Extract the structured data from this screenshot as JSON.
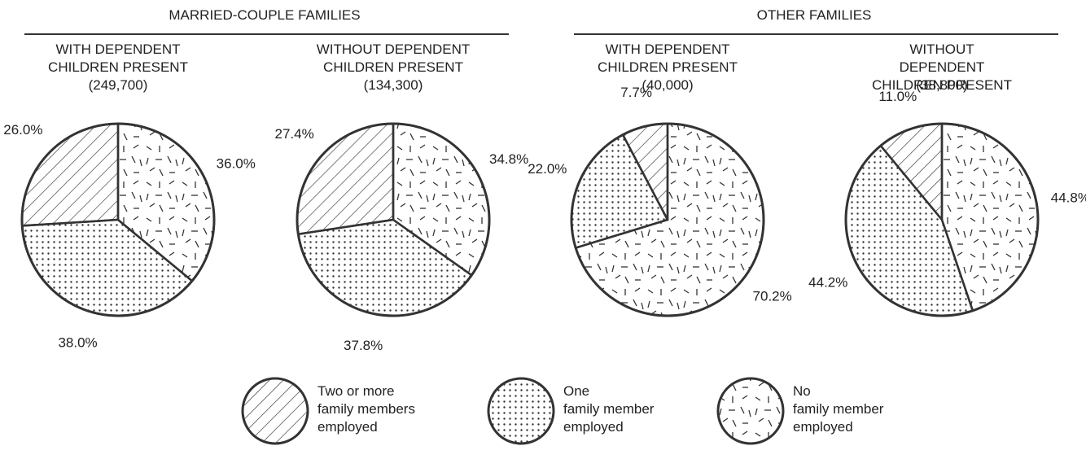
{
  "groups": [
    {
      "title": "MARRIED-COUPLE FAMILIES"
    },
    {
      "title": "OTHER FAMILIES"
    }
  ],
  "legend": [
    {
      "label": "Two or more\nfamily members\nemployed",
      "pattern": "hatch"
    },
    {
      "label": "One\nfamily member\nemployed",
      "pattern": "dots"
    },
    {
      "label": "No\nfamily member\nemployed",
      "pattern": "dashes"
    }
  ],
  "chart_data": [
    {
      "type": "pie",
      "title": "WITH DEPENDENT\nCHILDREN PRESENT",
      "subtitle": "(249,700)",
      "values": [
        26.0,
        38.0,
        36.0
      ],
      "value_labels": [
        "26.0%",
        "38.0%",
        "36.0%"
      ]
    },
    {
      "type": "pie",
      "title": "WITHOUT DEPENDENT\nCHILDREN PRESENT",
      "subtitle": "(134,300)",
      "values": [
        27.4,
        37.8,
        34.8
      ],
      "value_labels": [
        "27.4%",
        "37.8%",
        "34.8%"
      ]
    },
    {
      "type": "pie",
      "title": "WITH DEPENDENT\nCHILDREN PRESENT",
      "subtitle": "(40,000)",
      "values": [
        7.7,
        22.0,
        70.2
      ],
      "value_labels": [
        "7.7%",
        "22.0%",
        "70.2%"
      ]
    },
    {
      "type": "pie",
      "title": "WITHOUT DEPENDENT\nCHILDREN PRESENT",
      "subtitle": "(38,800)",
      "values": [
        11.0,
        44.2,
        44.8
      ],
      "value_labels": [
        "11.0%",
        "44.2%",
        "44.8%"
      ]
    }
  ]
}
